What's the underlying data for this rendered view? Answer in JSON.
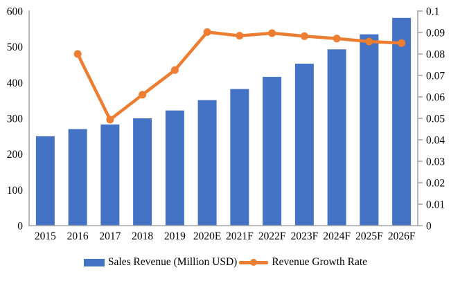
{
  "chart_data": {
    "type": "combo",
    "title": "",
    "categories": [
      "2015",
      "2016",
      "2017",
      "2018",
      "2019",
      "2020E",
      "2021F",
      "2022F",
      "2023F",
      "2024F",
      "2025F",
      "2026F"
    ],
    "series": [
      {
        "name": "Sales Revenue (Million USD)",
        "type": "bar",
        "axis": "left",
        "color": "#4472C4",
        "values": [
          250,
          270,
          283,
          300,
          322,
          351,
          382,
          416,
          453,
          493,
          535,
          581
        ]
      },
      {
        "name": "Revenue Growth Rate",
        "type": "line",
        "axis": "right",
        "color": "#ED7D31",
        "values": [
          null,
          0.08,
          0.0494,
          0.061,
          0.0725,
          0.0902,
          0.0885,
          0.0897,
          0.0883,
          0.0872,
          0.0858,
          0.0851
        ]
      }
    ],
    "axes": {
      "left": {
        "min": 0,
        "max": 600,
        "step": 100,
        "tick_labels": [
          "0",
          "100",
          "200",
          "300",
          "400",
          "500",
          "600"
        ]
      },
      "right": {
        "min": 0,
        "max": 0.1,
        "step": 0.01,
        "tick_labels": [
          "0",
          "0.01",
          "0.02",
          "0.03",
          "0.04",
          "0.05",
          "0.06",
          "0.07",
          "0.08",
          "0.09",
          "0.1"
        ]
      }
    },
    "grid": false,
    "legend_position": "bottom",
    "colors": {
      "bar": "#4472C4",
      "line": "#ED7D31",
      "axis": "#A6A6A6",
      "text": "#000000",
      "background": "#FFFFFF"
    }
  }
}
